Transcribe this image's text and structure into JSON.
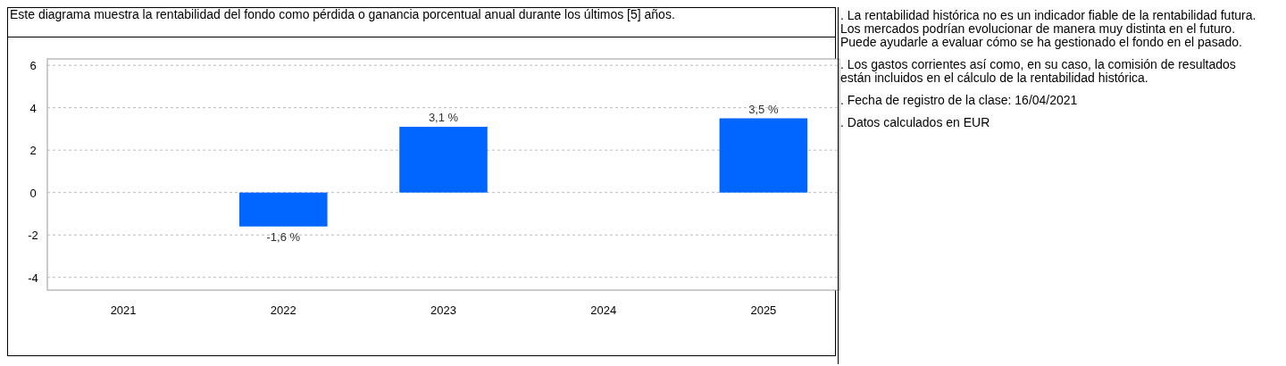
{
  "chart_data": {
    "type": "bar",
    "title": "Este diagrama muestra la rentabilidad del fondo como pérdida o ganancia porcentual anual durante los últimos [5] años.",
    "categories": [
      "2021",
      "2022",
      "2023",
      "2024",
      "2025"
    ],
    "series": [
      {
        "color": "#0066ff",
        "values": [
          null,
          -1.6,
          3.1,
          null,
          3.5
        ],
        "value_labels": [
          null,
          "-1,6 %",
          "3,1 %",
          null,
          "3,5 %"
        ]
      }
    ],
    "ylim": [
      -4.6,
      6.3
    ],
    "yticks": [
      -4,
      -2,
      0,
      2,
      4,
      6
    ],
    "grid": "y",
    "annotations": [
      ". La rentabilidad histórica no es un indicador fiable de la rentabilidad futura. Los mercados podrían evolucionar de manera muy distinta en el futuro. Puede ayudarle a evaluar cómo se ha gestionado el fondo en el pasado.",
      ". Los gastos corrientes así como, en su caso, la comisión de resultados están incluidos en el cálculo de la rentabilidad histórica.",
      ". Fecha de registro de la clase: 16/04/2021",
      ". Datos calculados en EUR"
    ]
  }
}
